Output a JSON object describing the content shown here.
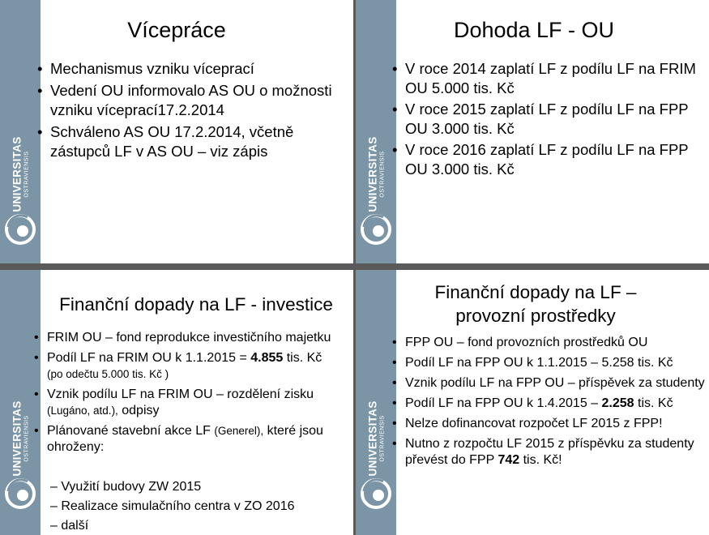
{
  "logo": {
    "line1": "UNIVERSITAS",
    "line2": "OSTRAVIENSIS"
  },
  "slides": [
    {
      "title": "Vícepráce",
      "bullets": [
        "Mechanismus vzniku víceprací",
        "Vedení OU informovalo AS OU o možnosti vzniku víceprací17.2.2014",
        "Schváleno AS OU 17.2.2014, včetně zástupců LF v AS OU – viz zápis"
      ]
    },
    {
      "title": "Dohoda LF - OU",
      "bullets": [
        "V roce 2014 zaplatí LF z podílu LF na FRIM OU 5.000 tis. Kč",
        "V roce 2015 zaplatí LF z podílu LF na FPP OU 3.000 tis. Kč",
        "V roce 2016 zaplatí LF z podílu LF na FPP OU 3.000 tis. Kč"
      ]
    },
    {
      "title": "Finanční dopady na LF - investice",
      "b1": "FRIM OU – fond reprodukce investičního majetku",
      "b2_pre": "Podíl LF na FRIM OU k 1.1.2015 = ",
      "b2_bold": "4.855",
      "b2_post": " tis. Kč",
      "b2_small": "(po odečtu 5.000 tis. Kč )",
      "b3_main": "Vznik podílu LF na FRIM OU – rozdělení zisku",
      "b3_small": "(Lugáno, atd.),",
      "b3_tail": " odpisy",
      "b4_pre": "Plánované stavební akce LF ",
      "b4_small": "(Generel),",
      "b4_post": " které jsou ohroženy:",
      "sub": [
        "– Využití budovy ZW 2015",
        "– Realizace simulačního centra v ZO 2016",
        "– další"
      ]
    },
    {
      "title": "Finanční dopady na LF – provozní prostředky",
      "b1": "FPP OU – fond provozních prostředků OU",
      "b2": "Podíl LF na FPP OU k 1.1.2015 – 5.258 tis. Kč",
      "b3": "Vznik podílu LF na FPP OU – příspěvek za studenty",
      "b4_pre": "Podíl LF na FPP OU k 1.4.2015 – ",
      "b4_bold": "2.258",
      "b4_post": " tis. Kč",
      "b5": "Nelze dofinancovat rozpočet LF 2015 z FPP!",
      "b6_pre": "Nutno z rozpočtu LF 2015 z příspěvku za studenty převést do FPP ",
      "b6_bold": "742",
      "b6_post": " tis. Kč!"
    }
  ]
}
